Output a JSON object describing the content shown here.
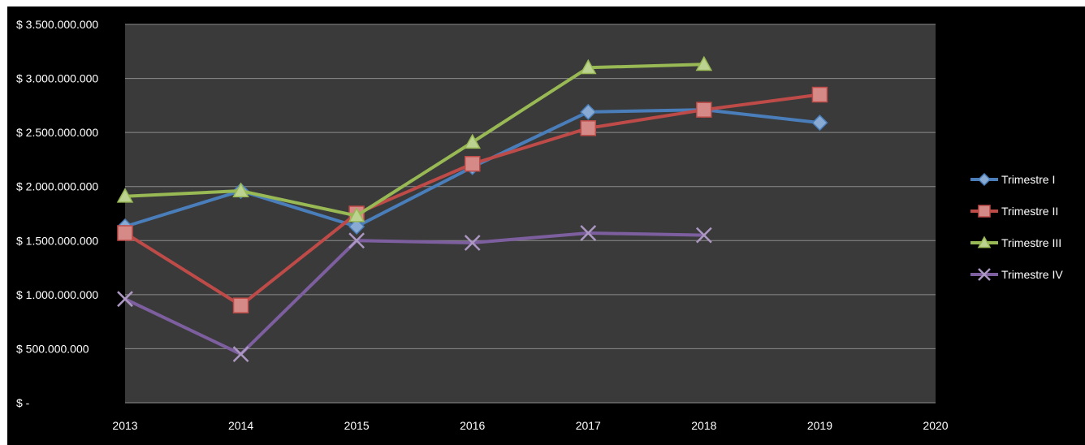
{
  "chart_data": {
    "type": "line",
    "title": "",
    "xlabel": "",
    "ylabel": "",
    "x": [
      2013,
      2014,
      2015,
      2016,
      2017,
      2018,
      2019,
      2020
    ],
    "x_tick_labels": [
      "2013",
      "2014",
      "2015",
      "2016",
      "2017",
      "2018",
      "2019",
      "2020"
    ],
    "xlim": [
      2013,
      2020
    ],
    "ylim": [
      0,
      3500000000
    ],
    "y_ticks": [
      0,
      500000000,
      1000000000,
      1500000000,
      2000000000,
      2500000000,
      3000000000,
      3500000000
    ],
    "y_tick_labels": [
      "$ -",
      "$ 500.000.000",
      "$ 1.000.000.000",
      "$ 1.500.000.000",
      "$ 2.000.000.000",
      "$ 2.500.000.000",
      "$ 3.000.000.000",
      "$ 3.500.000.000"
    ],
    "grid": true,
    "legend": "right",
    "plot_background": "#3a3a3a",
    "chart_background": "#000000",
    "grid_color": "#8c8c8c",
    "series": [
      {
        "name": "Trimestre I",
        "color": "#4a7ebb",
        "marker": "diamond",
        "x": [
          2013,
          2014,
          2015,
          2016,
          2017,
          2018,
          2019
        ],
        "values": [
          1630000000,
          1960000000,
          1630000000,
          2180000000,
          2690000000,
          2710000000,
          2590000000
        ]
      },
      {
        "name": "Trimestre II",
        "color": "#be4b48",
        "marker": "square",
        "x": [
          2013,
          2014,
          2015,
          2016,
          2017,
          2018,
          2019
        ],
        "values": [
          1570000000,
          900000000,
          1750000000,
          2210000000,
          2540000000,
          2710000000,
          2850000000
        ]
      },
      {
        "name": "Trimestre III",
        "color": "#98b954",
        "marker": "triangle",
        "x": [
          2013,
          2014,
          2015,
          2016,
          2017,
          2018
        ],
        "values": [
          1910000000,
          1960000000,
          1730000000,
          2410000000,
          3100000000,
          3130000000
        ]
      },
      {
        "name": "Trimestre IV",
        "color": "#7d5fa0",
        "marker": "x",
        "x": [
          2013,
          2014,
          2015,
          2016,
          2017,
          2018
        ],
        "values": [
          960000000,
          450000000,
          1500000000,
          1480000000,
          1570000000,
          1550000000
        ]
      }
    ]
  }
}
